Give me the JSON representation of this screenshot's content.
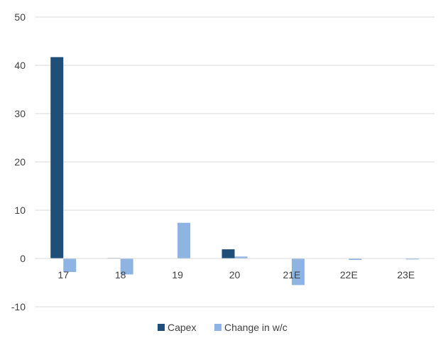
{
  "chart_data": {
    "type": "bar",
    "categories": [
      "17",
      "18",
      "19",
      "20",
      "21E",
      "22E",
      "23E"
    ],
    "series": [
      {
        "name": "Capex",
        "color": "#1f4e79",
        "values": [
          41.7,
          0.1,
          0,
          1.9,
          0,
          0,
          0
        ]
      },
      {
        "name": "Change in w/c",
        "color": "#8eb4e3",
        "values": [
          -2.8,
          -3.3,
          7.4,
          0.4,
          -5.5,
          -0.3,
          -0.2
        ]
      }
    ],
    "yticks": [
      "-10",
      "0",
      "10",
      "20",
      "30",
      "40",
      "50"
    ],
    "ylim": [
      -10,
      50
    ],
    "grid": true,
    "legend_position": "bottom"
  }
}
